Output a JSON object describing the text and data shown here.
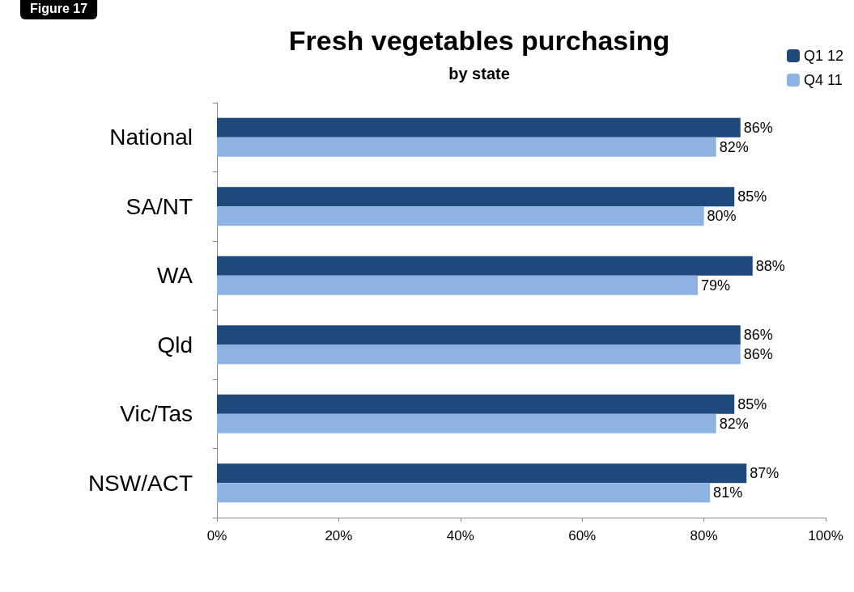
{
  "chart_data": {
    "type": "bar",
    "orientation": "horizontal",
    "title": "Fresh vegetables purchasing",
    "subtitle": "by state",
    "annotations": [
      "Figure 17"
    ],
    "categories": [
      "National",
      "SA/NT",
      "WA",
      "Qld",
      "Vic/Tas",
      "NSW/ACT"
    ],
    "series": [
      {
        "name": "Q1 12",
        "color": "#1f497d",
        "values": [
          86,
          85,
          88,
          86,
          85,
          87
        ],
        "value_labels": [
          "86%",
          "85%",
          "88%",
          "86%",
          "85%",
          "87%"
        ]
      },
      {
        "name": "Q4 11",
        "color": "#8db3e2",
        "values": [
          82,
          80,
          79,
          86,
          82,
          81
        ],
        "value_labels": [
          "82%",
          "80%",
          "79%",
          "86%",
          "82%",
          "81%"
        ]
      }
    ],
    "xlim": [
      0,
      100
    ],
    "xticks": [
      {
        "value": 0,
        "label": "0%"
      },
      {
        "value": 20,
        "label": "20%"
      },
      {
        "value": 40,
        "label": "40%"
      },
      {
        "value": 60,
        "label": "60%"
      },
      {
        "value": 80,
        "label": "80%"
      },
      {
        "value": 100,
        "label": "100%"
      }
    ],
    "grid": false,
    "legend": "top right"
  }
}
